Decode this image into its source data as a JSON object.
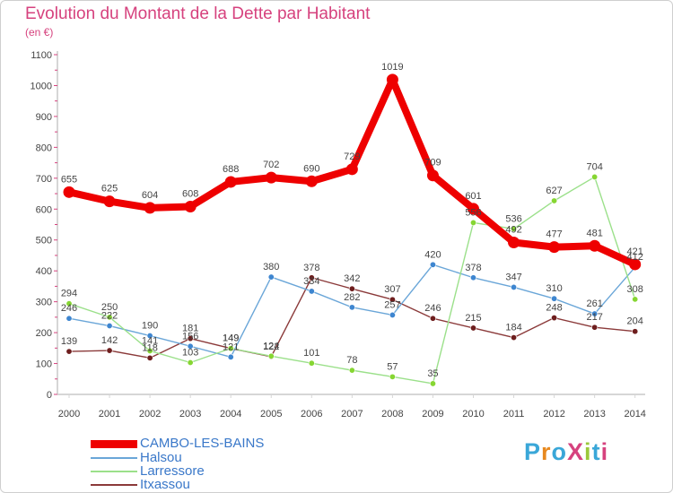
{
  "title": "Evolution du Montant de la Dette par Habitant",
  "subtitle": "(en €)",
  "logo": {
    "text": "ProXiti",
    "colors": [
      "#3aa7d8",
      "#e8891f",
      "#3aa7d8",
      "#d6427e",
      "#9bc83b",
      "#3aa7d8",
      "#d6427e"
    ]
  },
  "colors": {
    "accent": "#d6427e",
    "axis": "#d6d6d6",
    "tick": "#d6427e"
  },
  "chart_data": {
    "type": "line",
    "title": "Evolution du Montant de la Dette par Habitant",
    "ylabel": "(en €)",
    "xlabel": "",
    "x": [
      "2000",
      "2001",
      "2002",
      "2003",
      "2004",
      "2005",
      "2006",
      "2007",
      "2008",
      "2009",
      "2010",
      "2011",
      "2012",
      "2013",
      "2014"
    ],
    "ylim": [
      0,
      1100
    ],
    "yticks": [
      0,
      100,
      200,
      300,
      400,
      500,
      600,
      700,
      800,
      900,
      1000,
      1100
    ],
    "grid": false,
    "legend_position": "bottom-left",
    "series": [
      {
        "name": "CAMBO-LES-BAINS",
        "color": "#ee0000",
        "marker": "#ee0000",
        "values": [
          655,
          625,
          604,
          608,
          688,
          702,
          690,
          729,
          1019,
          709,
          601,
          492,
          477,
          481,
          421
        ]
      },
      {
        "name": "Halsou",
        "color": "#6aa6d8",
        "marker": "#3e86d0",
        "values": [
          246,
          222,
          190,
          156,
          121,
          380,
          334,
          282,
          257,
          420,
          378,
          347,
          310,
          261,
          412
        ]
      },
      {
        "name": "Larressore",
        "color": "#9be08a",
        "marker": "#86d632",
        "values": [
          294,
          250,
          141,
          103,
          149,
          124,
          101,
          78,
          57,
          35,
          556,
          536,
          627,
          704,
          308
        ]
      },
      {
        "name": "Itxassou",
        "color": "#8b3a3a",
        "marker": "#6e1e1e",
        "values": [
          139,
          142,
          118,
          181,
          149,
          122,
          378,
          342,
          307,
          246,
          215,
          184,
          248,
          217,
          204
        ]
      }
    ],
    "data_labels": [
      [
        "655",
        "625",
        "604",
        "608",
        "688",
        "702",
        "690",
        "729",
        "1019",
        "709",
        "601",
        "492",
        "477",
        "481",
        "421"
      ],
      [
        "246",
        "222",
        "190",
        "156",
        "121",
        "380",
        "334",
        "282",
        "257",
        "420",
        "378",
        "347",
        "310",
        "261",
        "412"
      ],
      [
        "294",
        "250",
        "141",
        "103",
        "149",
        "124",
        "101",
        "78",
        "57",
        "35",
        "556",
        "536",
        "627",
        "704",
        "308"
      ],
      [
        "139",
        "142",
        "118",
        "181",
        "149",
        "122",
        "378",
        "342",
        "307",
        "246",
        "215",
        "184",
        "248",
        "217",
        "204"
      ]
    ]
  }
}
